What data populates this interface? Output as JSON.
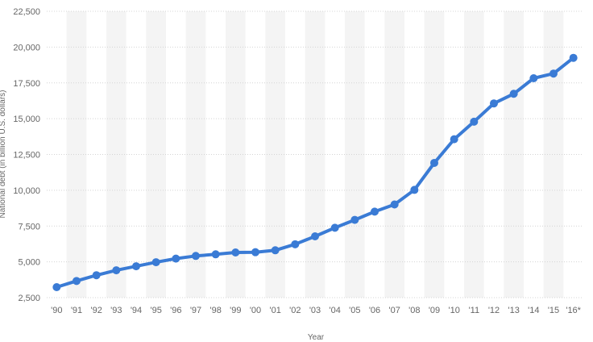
{
  "chart_data": {
    "type": "line",
    "xlabel": "Year",
    "ylabel": "National debt (in billion U.S. dollars)",
    "categories": [
      "'90",
      "'91",
      "'92",
      "'93",
      "'94",
      "'95",
      "'96",
      "'97",
      "'98",
      "'99",
      "'00",
      "'01",
      "'02",
      "'03",
      "'04",
      "'05",
      "'06",
      "'07",
      "'08",
      "'09",
      "'10",
      "'11",
      "'12",
      "'13",
      "'14",
      "'15",
      "'16*"
    ],
    "series": [
      {
        "color": "#3a7bd5",
        "values": [
          3233,
          3665,
          4065,
          4411,
          4693,
          4974,
          5225,
          5413,
          5526,
          5656,
          5674,
          5807,
          6228,
          6783,
          7379,
          7933,
          8507,
          9008,
          10025,
          11910,
          13562,
          14790,
          16066,
          16738,
          17824,
          18151,
          19250
        ]
      }
    ],
    "yticks": [
      2500,
      5000,
      7500,
      10000,
      12500,
      15000,
      17500,
      20000,
      22500
    ],
    "ytick_labels": [
      "2,500",
      "5,000",
      "7,500",
      "10,000",
      "12,500",
      "15,000",
      "17,500",
      "20,000",
      "22,500"
    ],
    "ylim": [
      2500,
      22500
    ],
    "grid": true,
    "alternating_column_bands": true
  }
}
